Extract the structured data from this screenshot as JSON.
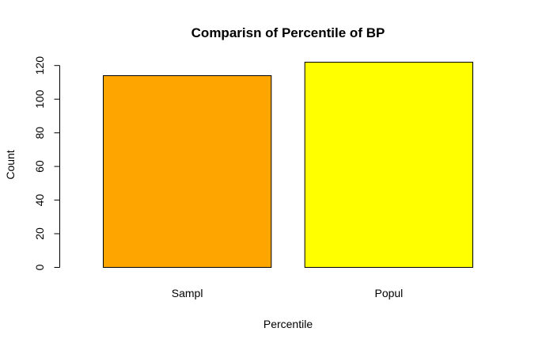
{
  "chart_data": {
    "type": "bar",
    "title": "Comparisn of Percentile of BP",
    "xlabel": "Percentile",
    "ylabel": "Count",
    "categories": [
      "Sampl",
      "Popul"
    ],
    "values": [
      114,
      122
    ],
    "colors": [
      "#FFA500",
      "#FFFF00"
    ],
    "ylim": [
      0,
      122
    ],
    "yticks": [
      0,
      20,
      40,
      60,
      80,
      100,
      120
    ],
    "grid": false,
    "legend": "none"
  }
}
